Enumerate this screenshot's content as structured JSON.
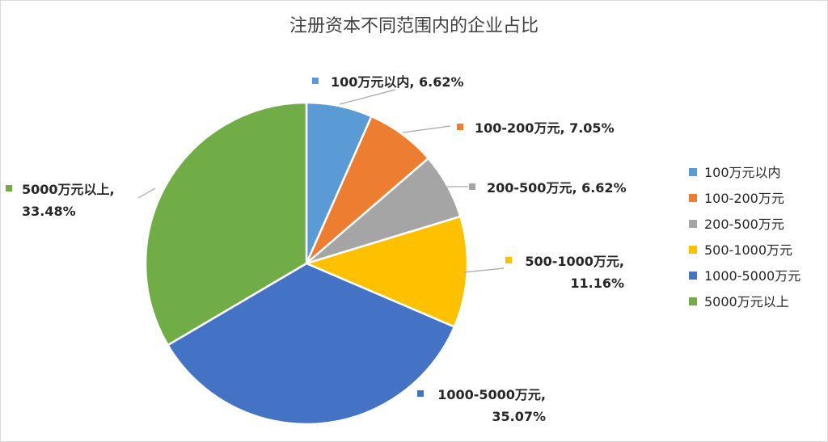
{
  "chart_data": {
    "type": "pie",
    "title": "注册资本不同范围内的企业占比",
    "start_angle_deg": 0,
    "direction": "clockwise",
    "legend_position": "right",
    "categories": [
      "100万元以内",
      "100-200万元",
      "200-500万元",
      "500-1000万元",
      "1000-5000万元",
      "5000万元以上"
    ],
    "values": [
      6.62,
      7.05,
      6.62,
      11.16,
      35.07,
      33.48
    ],
    "colors": [
      "#5b9bd5",
      "#ed7d31",
      "#a5a5a5",
      "#ffc000",
      "#4472c4",
      "#70ad47"
    ],
    "data_labels": [
      [
        "100万元以内, 6.62%"
      ],
      [
        "100-200万元, 7.05%"
      ],
      [
        "200-500万元, 6.62%"
      ],
      [
        "500-1000万元,",
        "11.16%"
      ],
      [
        "1000-5000万元,",
        "35.07%"
      ],
      [
        "5000万元以上,",
        "33.48%"
      ]
    ]
  }
}
